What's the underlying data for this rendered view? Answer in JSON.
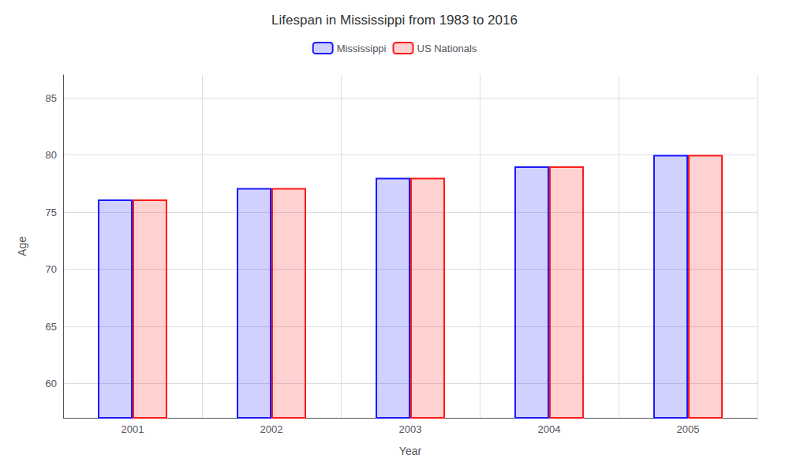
{
  "chart_data": {
    "type": "bar",
    "title": "Lifespan in Mississippi from 1983 to 2016",
    "xlabel": "Year",
    "ylabel": "Age",
    "categories": [
      "2001",
      "2002",
      "2003",
      "2004",
      "2005"
    ],
    "series": [
      {
        "name": "Mississippi",
        "color": "#1a1aff",
        "values": [
          76.1,
          77.1,
          78.0,
          79.0,
          80.0
        ]
      },
      {
        "name": "US Nationals",
        "color": "#ff1a1a",
        "values": [
          76.1,
          77.1,
          78.0,
          79.0,
          80.0
        ]
      }
    ],
    "ylim": [
      57,
      87
    ],
    "yticks": [
      60,
      65,
      70,
      75,
      80,
      85
    ],
    "grid": true,
    "legend": "upper center"
  }
}
